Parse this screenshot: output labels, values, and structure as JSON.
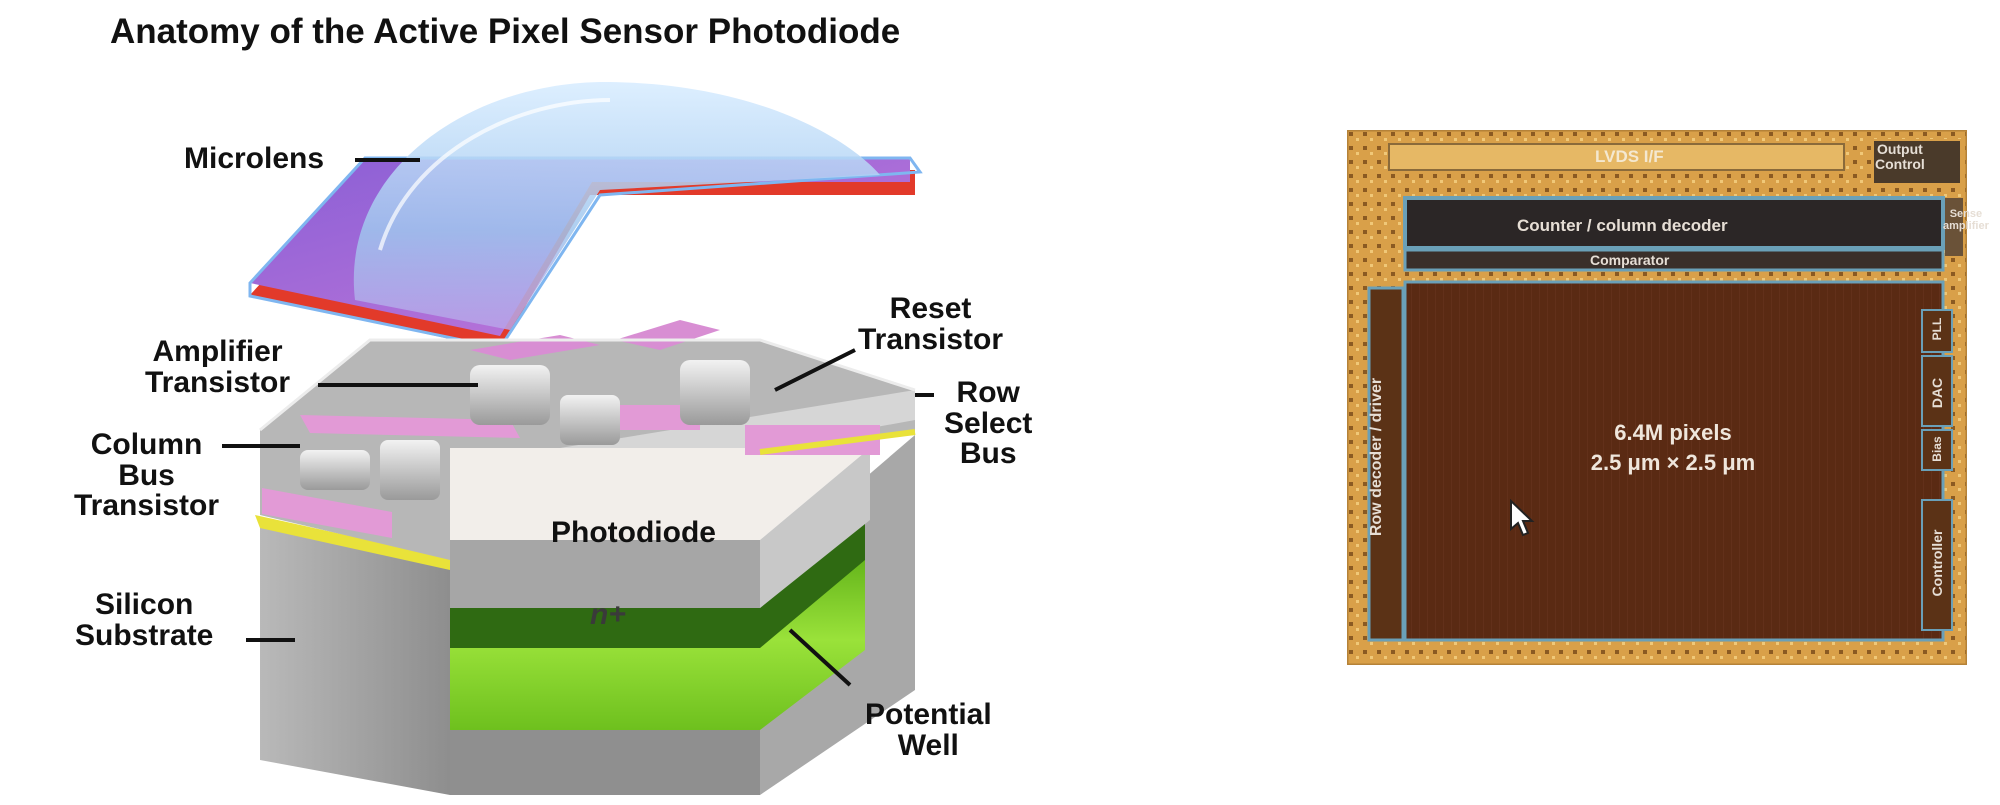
{
  "title": "Anatomy of the Active Pixel Sensor Photodiode",
  "labels": {
    "microlens": "Microlens",
    "amplifier": [
      "Amplifier",
      "Transistor"
    ],
    "reset": [
      "Reset",
      "Transistor"
    ],
    "row_select": [
      "Row",
      "Select",
      "Bus"
    ],
    "column_bus": [
      "Column",
      "Bus",
      "Transistor"
    ],
    "photodiode": "Photodiode",
    "n_plus": "n+",
    "silicon": [
      "Silicon",
      "Substrate"
    ],
    "potential_well": [
      "Potential",
      "Well"
    ]
  },
  "die": {
    "lvds": "LVDS I/F",
    "output_control": [
      "Output",
      "Control"
    ],
    "counter": "Counter / column decoder",
    "comparator": "Comparator",
    "row_decoder": "Row decoder / driver",
    "pixels": "6.4M pixels",
    "pixel_size": "2.5 μm × 2.5 μm",
    "sense_amp": [
      "Sense",
      "amplifier"
    ],
    "pll": "PLL",
    "dac": "DAC",
    "bias": "Bias",
    "controller": "Controller"
  },
  "colors": {
    "die_gold": "#d9a049",
    "die_core": "#5a2a13",
    "die_border": "#6aa0b8",
    "microlens": "#9fc6ee",
    "filter": "#a56bd8",
    "filter_edge": "#f0392b",
    "silicon": "#9c9c9c",
    "well": "#8edc2e"
  }
}
